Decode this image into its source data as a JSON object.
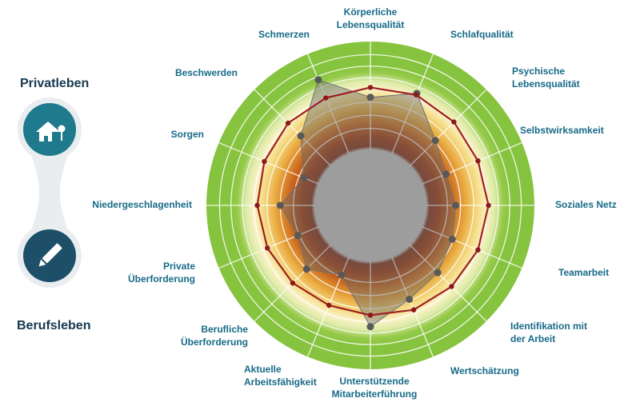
{
  "sidebar": {
    "private_label": "Privatleben",
    "work_label": "Berufsleben",
    "private_icon": "house-tree-icon",
    "work_icon": "pencil-icon",
    "private_circle_color": "#1e7a8c",
    "work_circle_color": "#1d5068",
    "connector_color": "#e9edf0",
    "label_color": "#16394f"
  },
  "chart_data": {
    "type": "radar",
    "title": "",
    "axis_label_color": "#176a88",
    "categories": [
      "Körperliche Lebensqualität",
      "Schlafqualität",
      "Psychische Lebensqualität",
      "Selbstwirksamkeit",
      "Soziales Netz",
      "Teamarbeit",
      "Identifikation mit der Arbeit",
      "Wertschätzung",
      "Unterstützende Mitarbeiterführung",
      "Aktuelle Arbeitsfähigkeit",
      "Berufliche Überforderung",
      "Private Überforderung",
      "Niedergeschlagenheit",
      "Sorgen",
      "Beschwerden",
      "Schmerzen"
    ],
    "r_max": 100,
    "hub_fraction": 34,
    "hub_color": "#c8c9ca",
    "grid_circles": [
      47,
      55,
      63,
      71,
      78,
      85,
      92
    ],
    "grid_color": "#ffffff",
    "background_stops": [
      {
        "offset": "34%",
        "color": "#c9c9c9"
      },
      {
        "offset": "36%",
        "color": "#84321a"
      },
      {
        "offset": "42%",
        "color": "#a13a12"
      },
      {
        "offset": "50%",
        "color": "#cc6a1e"
      },
      {
        "offset": "58%",
        "color": "#e9a83e"
      },
      {
        "offset": "65%",
        "color": "#f4d87e"
      },
      {
        "offset": "71%",
        "color": "#fbf2c6"
      },
      {
        "offset": "76%",
        "color": "#ddeba8"
      },
      {
        "offset": "81%",
        "color": "#96ca4a"
      },
      {
        "offset": "86%",
        "color": "#86c33e"
      },
      {
        "offset": "100%",
        "color": "#86c33e"
      }
    ],
    "series": [
      {
        "name": "series_gray",
        "stroke": "#707070",
        "stroke_width": 1,
        "fill": "rgba(105,105,105,0.45)",
        "dot_color": "#595959",
        "dot_radius": 4.5,
        "values": [
          66,
          74,
          56,
          50,
          52,
          54,
          58,
          62,
          74,
          46,
          55,
          48,
          55,
          44,
          60,
          83
        ]
      },
      {
        "name": "series_red",
        "stroke": "#9e2020",
        "stroke_width": 2.2,
        "fill": "none",
        "dot_color": "#8c1a1a",
        "dot_radius": 3.2,
        "values": [
          72,
          73,
          72,
          71,
          72,
          71,
          70,
          69,
          67,
          66,
          67,
          68,
          69,
          70,
          71,
          71
        ]
      }
    ],
    "legend": "off",
    "grid": "on"
  }
}
